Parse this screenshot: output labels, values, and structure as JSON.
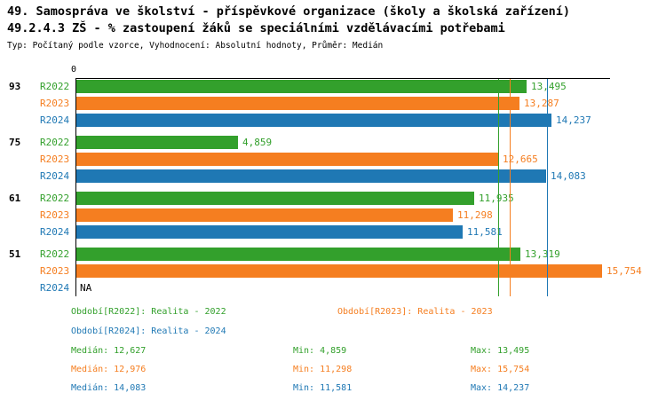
{
  "header": {
    "title1": "49. Samospráva ve školství - příspěvkové organizace (školy a školská zařízení)",
    "title2": "49.2.4.3 ZŠ - % zastoupení žáků se speciálními vzdělávacími potřebami",
    "subtitle": "Typ: Počítaný podle vzorce, Vyhodnocení: Absolutní hodnoty, Průměr: Medián"
  },
  "colors": {
    "r2022": "#33a02c",
    "r2023": "#f57e20",
    "r2024": "#1f78b4",
    "axis": "#000000",
    "na_text": "#000000"
  },
  "chart_data": {
    "type": "bar",
    "orientation": "horizontal",
    "axis_tick_label": "0",
    "xlim": [
      0,
      15950
    ],
    "grid": false,
    "groups": [
      "93",
      "75",
      "61",
      "51"
    ],
    "series": [
      {
        "name": "R2022",
        "color_key": "r2022",
        "values": [
          13495,
          4859,
          11935,
          13319
        ],
        "labels": [
          "13,495",
          "4,859",
          "11,935",
          "13,319"
        ]
      },
      {
        "name": "R2023",
        "color_key": "r2023",
        "values": [
          13287,
          12665,
          11298,
          15754
        ],
        "labels": [
          "13,287",
          "12,665",
          "11,298",
          "15,754"
        ]
      },
      {
        "name": "R2024",
        "color_key": "r2024",
        "values": [
          14237,
          14083,
          11581,
          null
        ],
        "labels": [
          "14,237",
          "14,083",
          "11,581",
          "NA"
        ]
      }
    ],
    "median_lines": [
      {
        "value": 12627,
        "color_key": "r2022"
      },
      {
        "value": 12976,
        "color_key": "r2023"
      },
      {
        "value": 14083,
        "color_key": "r2024"
      }
    ]
  },
  "legend": {
    "items": [
      {
        "label": "Období[R2022]: Realita - 2022",
        "color_key": "r2022"
      },
      {
        "label": "Období[R2023]: Realita - 2023",
        "color_key": "r2023"
      },
      {
        "label": "Období[R2024]: Realita - 2024",
        "color_key": "r2024"
      }
    ]
  },
  "stats": {
    "rows": [
      {
        "median": "Medián: 12,627",
        "min": "Min: 4,859",
        "max": "Max: 13,495",
        "color_key": "r2022"
      },
      {
        "median": "Medián: 12,976",
        "min": "Min: 11,298",
        "max": "Max: 15,754",
        "color_key": "r2023"
      },
      {
        "median": "Medián: 14,083",
        "min": "Min: 11,581",
        "max": "Max: 14,237",
        "color_key": "r2024"
      }
    ]
  }
}
